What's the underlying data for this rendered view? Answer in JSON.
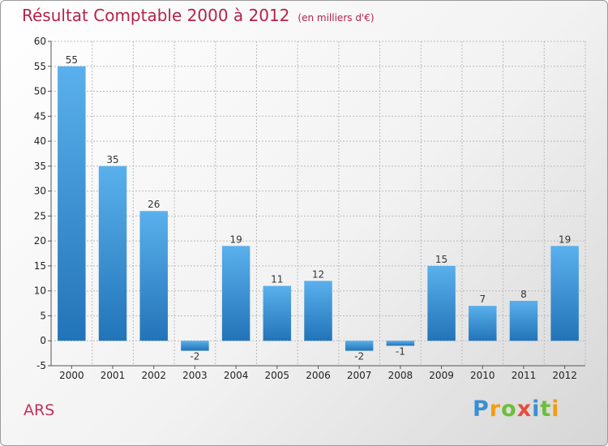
{
  "chart_data": {
    "type": "bar",
    "title": "Résultat Comptable 2000 à 2012",
    "unit": "(en milliers d'€)",
    "categories": [
      "2000",
      "2001",
      "2002",
      "2003",
      "2004",
      "2005",
      "2006",
      "2007",
      "2008",
      "2009",
      "2010",
      "2011",
      "2012"
    ],
    "values": [
      55,
      35,
      26,
      -2,
      19,
      11,
      12,
      -2,
      -1,
      15,
      7,
      8,
      19
    ],
    "ylim": [
      -5,
      60
    ],
    "yticks": [
      -5,
      0,
      5,
      10,
      15,
      20,
      25,
      30,
      35,
      40,
      45,
      50,
      55,
      60
    ],
    "grid": true,
    "colors": {
      "bar_top": "#5ab0ec",
      "bar_bottom": "#2274b8",
      "grid": "#bbbbbb",
      "text": "#b3224b"
    }
  },
  "place": "ARS",
  "brand": {
    "letters": [
      "P",
      "r",
      "o",
      "x",
      "i",
      "t",
      "i"
    ],
    "colors": [
      "#3a8fd4",
      "#f39c12",
      "#6cbf3a",
      "#e74c3c",
      "#3a8fd4",
      "#6cbf3a",
      "#f39c12"
    ]
  }
}
